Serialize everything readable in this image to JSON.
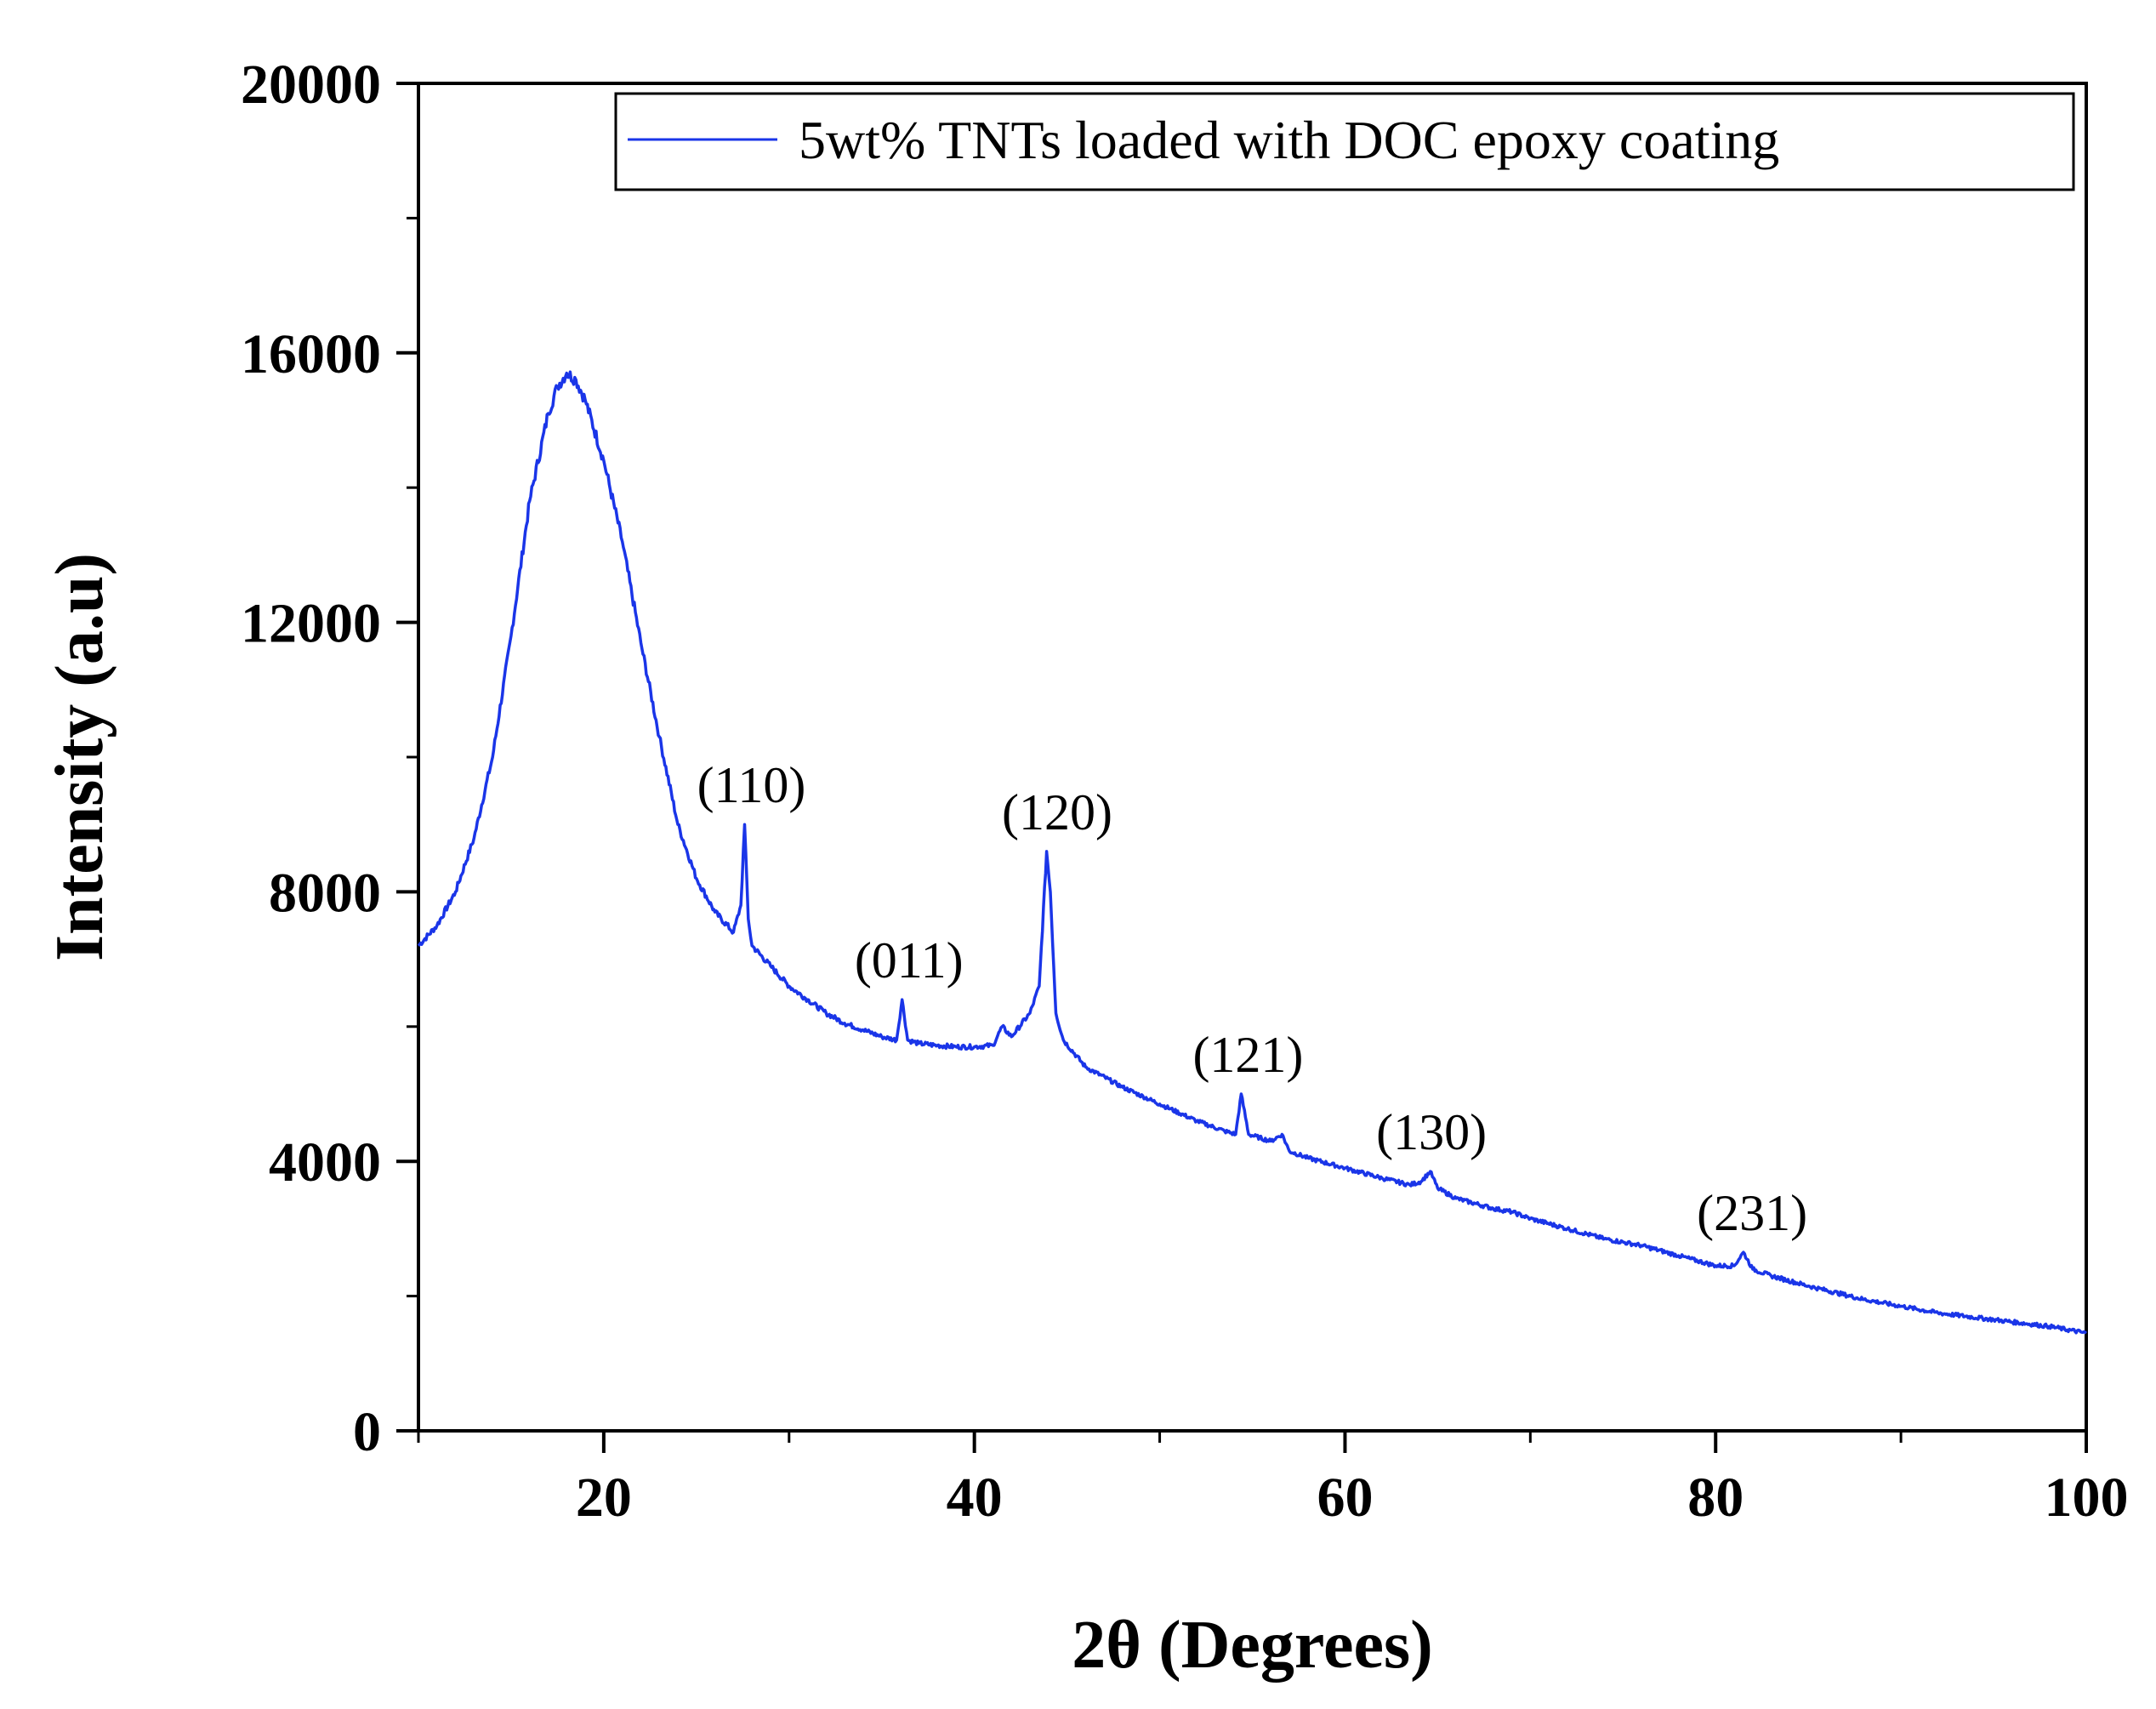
{
  "chart_data": {
    "type": "line",
    "title": "",
    "xlabel": "2θ (Degrees)",
    "ylabel": "Intensity (a.u)",
    "xlim": [
      10,
      100
    ],
    "ylim": [
      0,
      20000
    ],
    "x_ticks": [
      20,
      40,
      60,
      80,
      100
    ],
    "y_ticks": [
      0,
      4000,
      8000,
      12000,
      16000,
      20000
    ],
    "x_minor_step": 10,
    "y_minor_step": 2000,
    "grid": false,
    "legend_position": "top-right",
    "series": [
      {
        "name": "5wt% TNTs loaded with DOC epoxy coating",
        "color": "#1a35e8",
        "x": [
          10,
          11,
          12,
          13,
          14,
          15,
          16,
          17,
          17.5,
          18,
          18.5,
          19,
          20,
          21,
          22,
          23,
          24,
          25,
          26,
          27,
          27.4,
          27.6,
          27.8,
          28,
          29,
          30,
          31,
          32,
          33,
          34,
          35,
          35.8,
          36.1,
          36.4,
          37,
          38,
          39,
          40,
          41,
          41.5,
          42,
          43,
          43.5,
          43.9,
          44.1,
          44.4,
          44.8,
          46,
          48,
          50,
          52,
          53.5,
          54.1,
          54.4,
          54.8,
          56,
          56.6,
          57,
          58,
          60,
          62,
          63.5,
          64.1,
          64.6,
          65,
          66,
          68,
          69,
          70,
          72,
          74,
          76,
          78,
          80,
          81,
          81.5,
          82,
          83,
          85,
          88,
          90,
          92,
          95,
          98,
          100
        ],
        "y": [
          7200,
          7500,
          8000,
          8800,
          10000,
          11800,
          13800,
          15100,
          15500,
          15700,
          15600,
          15300,
          14400,
          13200,
          11700,
          10300,
          9000,
          8200,
          7700,
          7400,
          7800,
          9000,
          7600,
          7200,
          6900,
          6600,
          6400,
          6200,
          6050,
          5950,
          5850,
          5800,
          6400,
          5800,
          5750,
          5720,
          5700,
          5700,
          5720,
          6000,
          5850,
          6200,
          6600,
          8600,
          8000,
          6200,
          5800,
          5400,
          5100,
          4850,
          4600,
          4450,
          4400,
          5000,
          4400,
          4300,
          4400,
          4150,
          4050,
          3900,
          3750,
          3650,
          3700,
          3850,
          3600,
          3450,
          3300,
          3250,
          3150,
          3000,
          2850,
          2750,
          2600,
          2450,
          2450,
          2650,
          2400,
          2300,
          2150,
          1950,
          1850,
          1750,
          1650,
          1550,
          1450
        ]
      }
    ],
    "annotations": [
      {
        "text": "(110)",
        "x": 27.6
      },
      {
        "text": "(011)",
        "x": 36.1
      },
      {
        "text": "(120)",
        "x": 44.1
      },
      {
        "text": "(121)",
        "x": 54.4
      },
      {
        "text": "(130)",
        "x": 64.3
      },
      {
        "text": "(231)",
        "x": 81.6
      }
    ]
  }
}
